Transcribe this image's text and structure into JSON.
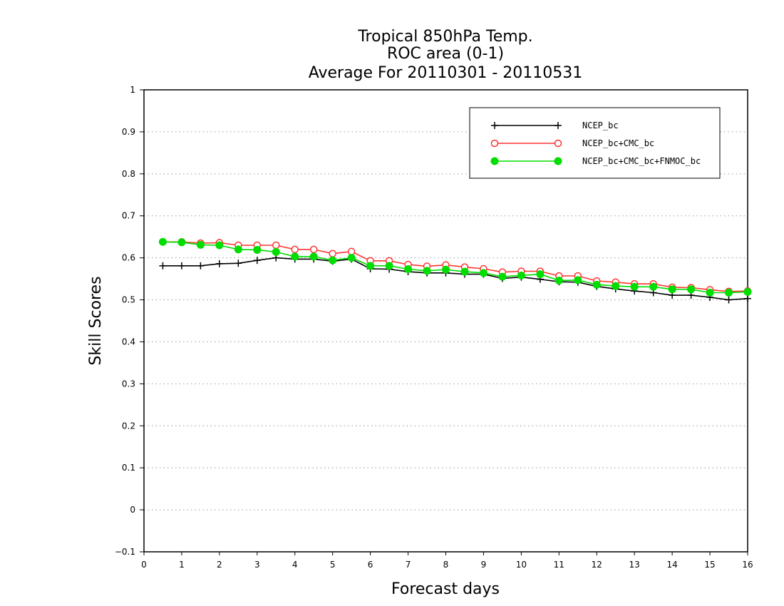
{
  "chart_data": {
    "type": "line",
    "title_lines": [
      "Tropical 850hPa Temp.",
      "ROC area (0-1)",
      "Average For 20110301 - 20110531"
    ],
    "xlabel": "Forecast days",
    "ylabel": "Skill Scores",
    "xlim": [
      0,
      16
    ],
    "ylim": [
      -0.1,
      1
    ],
    "x_ticks": [
      "0",
      "1",
      "2",
      "3",
      "4",
      "5",
      "6",
      "7",
      "8",
      "9",
      "10",
      "11",
      "12",
      "13",
      "14",
      "15",
      "16"
    ],
    "y_ticks": [
      "−0.1",
      "0",
      "0.1",
      "0.2",
      "0.3",
      "0.4",
      "0.5",
      "0.6",
      "0.7",
      "0.8",
      "0.9",
      "1"
    ],
    "grid": "horizontal dotted",
    "legend_position": "top-right",
    "x": [
      0.5,
      1,
      1.5,
      2,
      2.5,
      3,
      3.5,
      4,
      4.5,
      5,
      5.5,
      6,
      6.5,
      7,
      7.5,
      8,
      8.5,
      9,
      9.5,
      10,
      10.5,
      11,
      11.5,
      12,
      12.5,
      13,
      13.5,
      14,
      14.5,
      15,
      15.5,
      16
    ],
    "series": [
      {
        "name": "NCEP_bc",
        "color": "#000000",
        "marker": "plus",
        "values": [
          0.581,
          0.581,
          0.581,
          0.586,
          0.587,
          0.594,
          0.6,
          0.597,
          0.597,
          0.592,
          0.597,
          0.574,
          0.573,
          0.567,
          0.564,
          0.564,
          0.561,
          0.561,
          0.551,
          0.554,
          0.549,
          0.543,
          0.542,
          0.532,
          0.526,
          0.521,
          0.517,
          0.511,
          0.511,
          0.506,
          0.5,
          0.503
        ]
      },
      {
        "name": "NCEP_bc+CMC_bc",
        "color": "#ff3333",
        "marker": "open-circle",
        "values": [
          0.638,
          0.638,
          0.635,
          0.636,
          0.63,
          0.63,
          0.63,
          0.62,
          0.62,
          0.61,
          0.615,
          0.593,
          0.593,
          0.584,
          0.58,
          0.583,
          0.578,
          0.574,
          0.566,
          0.568,
          0.568,
          0.557,
          0.557,
          0.545,
          0.542,
          0.538,
          0.538,
          0.53,
          0.529,
          0.524,
          0.52,
          0.521
        ]
      },
      {
        "name": "NCEP_bc+CMC_bc+FNMOC_bc",
        "color": "#00dd00",
        "marker": "filled-circle",
        "values": [
          0.638,
          0.637,
          0.631,
          0.63,
          0.62,
          0.619,
          0.614,
          0.603,
          0.603,
          0.594,
          0.6,
          0.581,
          0.581,
          0.573,
          0.569,
          0.572,
          0.567,
          0.564,
          0.555,
          0.558,
          0.561,
          0.546,
          0.547,
          0.536,
          0.533,
          0.531,
          0.531,
          0.525,
          0.525,
          0.517,
          0.517,
          0.519
        ]
      }
    ]
  }
}
